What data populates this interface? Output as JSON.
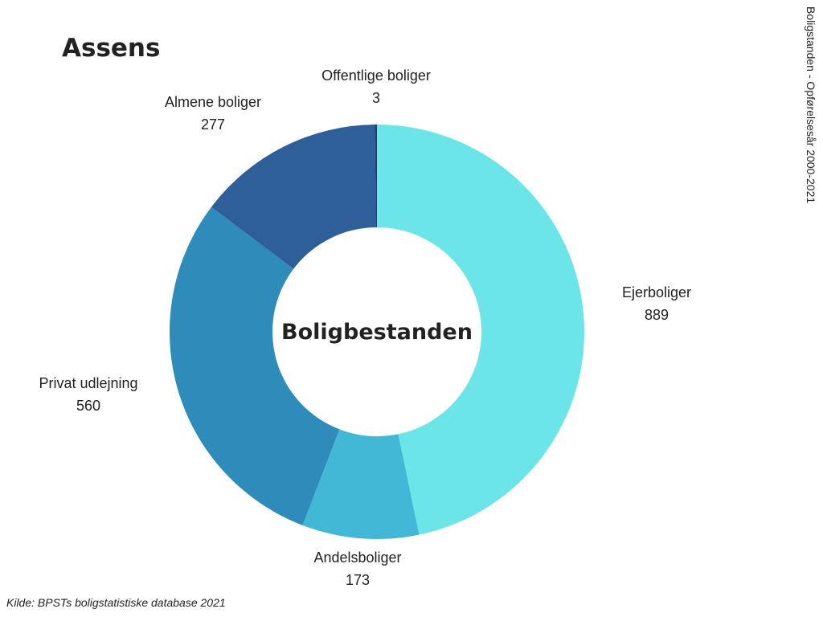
{
  "chart_data": {
    "type": "pie",
    "title": "Assens",
    "center_label": "Boligbestanden",
    "side_label": "Boligstanden - Opførelsesår 2000-2021",
    "source": "Kilde: BPSTs boligstatistiske database 2021",
    "categories": [
      "Ejerboliger",
      "Andelsboliger",
      "Privat udlejning",
      "Almene boliger",
      "Offentlige boliger"
    ],
    "values": [
      889,
      173,
      560,
      277,
      3
    ],
    "colors": [
      "#6be5e8",
      "#42b7d6",
      "#2e8bba",
      "#2e5f98",
      "#1f3f6e"
    ]
  }
}
